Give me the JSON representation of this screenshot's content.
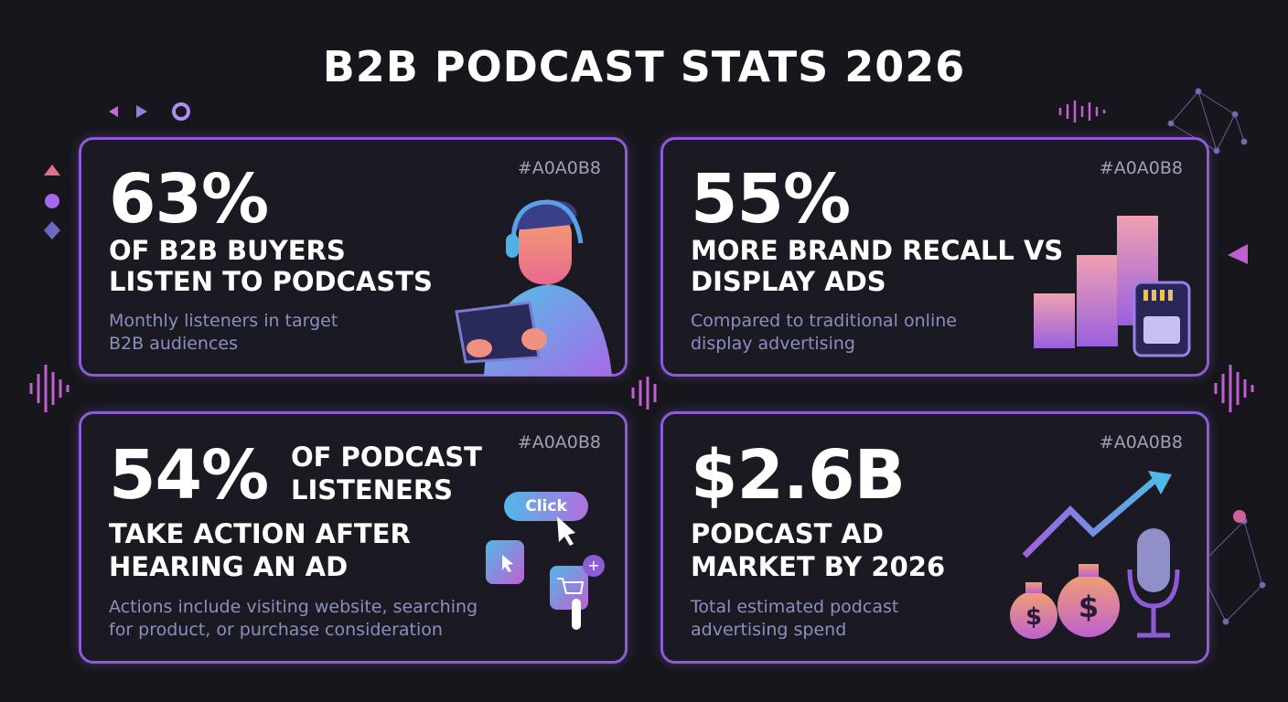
{
  "title": "B2B PODCAST STATS 2026",
  "colors": {
    "background": "#17161c",
    "card_border": "#8b5cd6",
    "hex_label": "#A0A0B8",
    "subtext": "#8a8fc0"
  },
  "cards": [
    {
      "hex": "#A0A0B8",
      "stat": "63%",
      "headline_1": "OF B2B BUYERS",
      "headline_2": "LISTEN TO PODCASTS",
      "sub_1": "Monthly listeners in target",
      "sub_2": "B2B audiences",
      "icon": "person-headphones-tablet-icon"
    },
    {
      "hex": "#A0A0B8",
      "stat": "55%",
      "headline_1": "MORE BRAND RECALL VS",
      "headline_2": "DISPLAY ADS",
      "sub_1": "Compared to traditional online",
      "sub_2": "display advertising",
      "icon": "bar-chart-memory-card-icon"
    },
    {
      "hex": "#A0A0B8",
      "stat": "54%",
      "headline_1": "OF PODCAST",
      "headline_2": "LISTENERS",
      "headline_3": "TAKE ACTION AFTER",
      "headline_4": "HEARING AN AD",
      "sub_1": "Actions include visiting website, searching",
      "sub_2": "for product, or purchase consideration",
      "click_label": "Click",
      "icon": "click-cart-icon"
    },
    {
      "hex": "#A0A0B8",
      "stat": "$2.6B",
      "headline_1": "PODCAST AD",
      "headline_2": "MARKET BY 2026",
      "sub_1": "Total estimated podcast",
      "sub_2": "advertising spend",
      "icon": "money-bags-microphone-icon"
    }
  ]
}
